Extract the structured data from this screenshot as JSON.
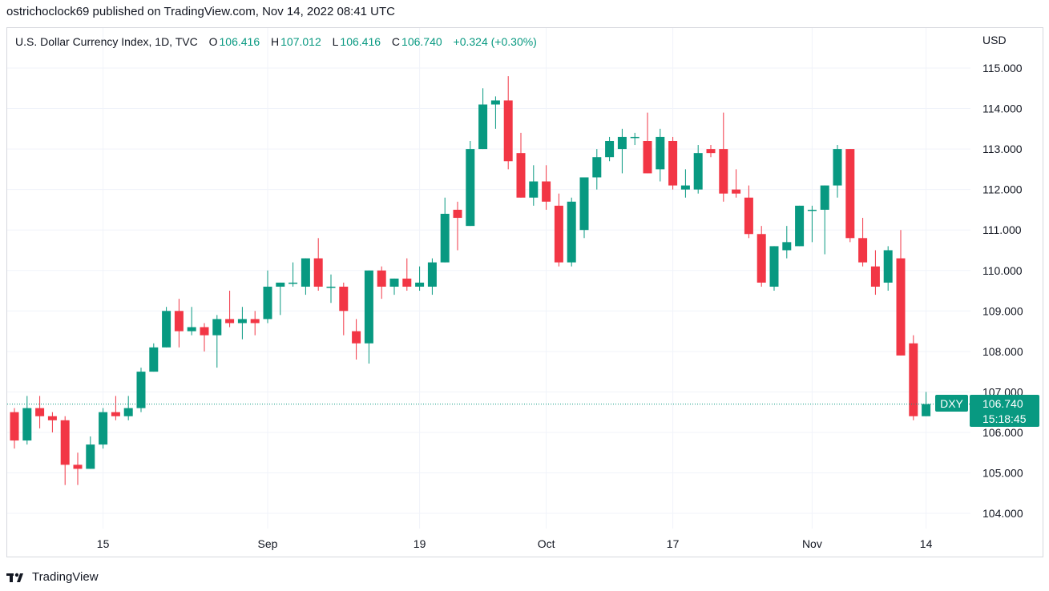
{
  "header": {
    "published_line": "ostrichoclock69 published on TradingView.com, Nov 14, 2022 08:41 UTC"
  },
  "legend": {
    "symbol": "U.S. Dollar Currency Index, 1D, TVC",
    "o_key": "O",
    "o_val": "106.416",
    "h_key": "H",
    "h_val": "107.012",
    "l_key": "L",
    "l_val": "106.416",
    "c_key": "C",
    "c_val": "106.740",
    "change": "+0.324 (+0.30%)"
  },
  "currency": "USD",
  "price_tag": {
    "ticker": "DXY",
    "price": "106.740",
    "countdown": "15:18:45"
  },
  "footer": {
    "brand": "TradingView",
    "logo": "tradingview-logo-icon"
  },
  "colors": {
    "up": "#089981",
    "down": "#f23645",
    "grid": "#f0f3fa",
    "axis_text": "#131722"
  },
  "chart_data": {
    "type": "candlestick",
    "ylim": [
      103.2,
      116.2
    ],
    "y_ticks": [
      "104.000",
      "105.000",
      "106.000",
      "107.000",
      "108.000",
      "109.000",
      "110.000",
      "111.000",
      "112.000",
      "113.000",
      "114.000",
      "115.000"
    ],
    "x_ticks": [
      {
        "label": "15",
        "index": 7
      },
      {
        "label": "Sep",
        "index": 20
      },
      {
        "label": "19",
        "index": 32
      },
      {
        "label": "Oct",
        "index": 42
      },
      {
        "label": "17",
        "index": 52
      },
      {
        "label": "Nov",
        "index": 63
      },
      {
        "label": "14",
        "index": 72
      }
    ],
    "candles": [
      {
        "o": 106.5,
        "h": 106.6,
        "l": 105.6,
        "c": 105.8
      },
      {
        "o": 105.8,
        "h": 106.9,
        "l": 105.7,
        "c": 106.6
      },
      {
        "o": 106.6,
        "h": 106.9,
        "l": 106.1,
        "c": 106.4
      },
      {
        "o": 106.4,
        "h": 106.5,
        "l": 106.0,
        "c": 106.3
      },
      {
        "o": 106.3,
        "h": 106.4,
        "l": 104.7,
        "c": 105.2
      },
      {
        "o": 105.2,
        "h": 105.5,
        "l": 104.7,
        "c": 105.1
      },
      {
        "o": 105.1,
        "h": 105.9,
        "l": 105.1,
        "c": 105.7
      },
      {
        "o": 105.7,
        "h": 106.6,
        "l": 105.6,
        "c": 106.5
      },
      {
        "o": 106.5,
        "h": 106.9,
        "l": 106.3,
        "c": 106.4
      },
      {
        "o": 106.4,
        "h": 106.9,
        "l": 106.3,
        "c": 106.6
      },
      {
        "o": 106.6,
        "h": 107.6,
        "l": 106.5,
        "c": 107.5
      },
      {
        "o": 107.5,
        "h": 108.2,
        "l": 107.5,
        "c": 108.1
      },
      {
        "o": 108.1,
        "h": 109.1,
        "l": 108.1,
        "c": 109.0
      },
      {
        "o": 109.0,
        "h": 109.3,
        "l": 108.1,
        "c": 108.5
      },
      {
        "o": 108.5,
        "h": 109.1,
        "l": 108.4,
        "c": 108.6
      },
      {
        "o": 108.6,
        "h": 108.7,
        "l": 108.0,
        "c": 108.4
      },
      {
        "o": 108.4,
        "h": 108.9,
        "l": 107.6,
        "c": 108.8
      },
      {
        "o": 108.8,
        "h": 109.5,
        "l": 108.6,
        "c": 108.7
      },
      {
        "o": 108.7,
        "h": 109.1,
        "l": 108.3,
        "c": 108.8
      },
      {
        "o": 108.8,
        "h": 109.0,
        "l": 108.4,
        "c": 108.7
      },
      {
        "o": 108.8,
        "h": 110.0,
        "l": 108.7,
        "c": 109.6
      },
      {
        "o": 109.6,
        "h": 109.7,
        "l": 108.9,
        "c": 109.7
      },
      {
        "o": 109.7,
        "h": 110.2,
        "l": 109.6,
        "c": 109.7
      },
      {
        "o": 109.6,
        "h": 110.3,
        "l": 109.4,
        "c": 110.3
      },
      {
        "o": 110.3,
        "h": 110.8,
        "l": 109.5,
        "c": 109.6
      },
      {
        "o": 109.6,
        "h": 109.9,
        "l": 109.2,
        "c": 109.6
      },
      {
        "o": 109.6,
        "h": 109.7,
        "l": 108.4,
        "c": 109.0
      },
      {
        "o": 108.5,
        "h": 108.8,
        "l": 107.8,
        "c": 108.2
      },
      {
        "o": 108.2,
        "h": 110.0,
        "l": 107.7,
        "c": 110.0
      },
      {
        "o": 110.0,
        "h": 110.1,
        "l": 109.3,
        "c": 109.6
      },
      {
        "o": 109.6,
        "h": 109.8,
        "l": 109.4,
        "c": 109.8
      },
      {
        "o": 109.8,
        "h": 110.3,
        "l": 109.5,
        "c": 109.6
      },
      {
        "o": 109.6,
        "h": 110.1,
        "l": 109.5,
        "c": 109.7
      },
      {
        "o": 109.6,
        "h": 110.3,
        "l": 109.4,
        "c": 110.2
      },
      {
        "o": 110.2,
        "h": 111.8,
        "l": 110.2,
        "c": 111.4
      },
      {
        "o": 111.5,
        "h": 111.7,
        "l": 110.5,
        "c": 111.3
      },
      {
        "o": 111.1,
        "h": 113.2,
        "l": 111.1,
        "c": 113.0
      },
      {
        "o": 113.0,
        "h": 114.5,
        "l": 113.0,
        "c": 114.1
      },
      {
        "o": 114.1,
        "h": 114.3,
        "l": 113.5,
        "c": 114.2
      },
      {
        "o": 114.2,
        "h": 114.8,
        "l": 112.5,
        "c": 112.7
      },
      {
        "o": 112.9,
        "h": 113.4,
        "l": 111.8,
        "c": 111.8
      },
      {
        "o": 111.8,
        "h": 112.6,
        "l": 111.6,
        "c": 112.2
      },
      {
        "o": 112.2,
        "h": 112.6,
        "l": 111.5,
        "c": 111.7
      },
      {
        "o": 111.6,
        "h": 111.9,
        "l": 110.1,
        "c": 110.2
      },
      {
        "o": 110.2,
        "h": 111.8,
        "l": 110.1,
        "c": 111.7
      },
      {
        "o": 111.0,
        "h": 112.3,
        "l": 110.8,
        "c": 112.3
      },
      {
        "o": 112.3,
        "h": 113.0,
        "l": 112.0,
        "c": 112.8
      },
      {
        "o": 112.8,
        "h": 113.3,
        "l": 112.7,
        "c": 113.2
      },
      {
        "o": 113.0,
        "h": 113.5,
        "l": 112.4,
        "c": 113.3
      },
      {
        "o": 113.3,
        "h": 113.4,
        "l": 113.1,
        "c": 113.3
      },
      {
        "o": 113.2,
        "h": 113.9,
        "l": 112.4,
        "c": 112.4
      },
      {
        "o": 112.5,
        "h": 113.5,
        "l": 112.2,
        "c": 113.3
      },
      {
        "o": 113.2,
        "h": 113.3,
        "l": 112.0,
        "c": 112.1
      },
      {
        "o": 112.0,
        "h": 112.5,
        "l": 111.8,
        "c": 112.1
      },
      {
        "o": 112.0,
        "h": 113.1,
        "l": 111.9,
        "c": 112.9
      },
      {
        "o": 113.0,
        "h": 113.1,
        "l": 112.8,
        "c": 112.9
      },
      {
        "o": 113.0,
        "h": 113.9,
        "l": 111.7,
        "c": 111.9
      },
      {
        "o": 112.0,
        "h": 112.5,
        "l": 111.8,
        "c": 111.9
      },
      {
        "o": 111.8,
        "h": 112.1,
        "l": 110.8,
        "c": 110.9
      },
      {
        "o": 110.9,
        "h": 111.1,
        "l": 109.6,
        "c": 109.7
      },
      {
        "o": 109.6,
        "h": 110.6,
        "l": 109.5,
        "c": 110.6
      },
      {
        "o": 110.5,
        "h": 111.1,
        "l": 110.3,
        "c": 110.7
      },
      {
        "o": 110.6,
        "h": 111.6,
        "l": 110.6,
        "c": 111.6
      },
      {
        "o": 111.5,
        "h": 111.6,
        "l": 110.7,
        "c": 111.5
      },
      {
        "o": 111.5,
        "h": 112.1,
        "l": 110.4,
        "c": 112.1
      },
      {
        "o": 112.1,
        "h": 113.1,
        "l": 111.8,
        "c": 113.0
      },
      {
        "o": 113.0,
        "h": 113.0,
        "l": 110.7,
        "c": 110.8
      },
      {
        "o": 110.8,
        "h": 111.3,
        "l": 110.1,
        "c": 110.2
      },
      {
        "o": 110.1,
        "h": 110.5,
        "l": 109.4,
        "c": 109.6
      },
      {
        "o": 109.7,
        "h": 110.6,
        "l": 109.5,
        "c": 110.5
      },
      {
        "o": 110.3,
        "h": 111.0,
        "l": 107.9,
        "c": 107.9
      },
      {
        "o": 108.2,
        "h": 108.4,
        "l": 106.3,
        "c": 106.4
      },
      {
        "o": 106.4,
        "h": 107.0,
        "l": 106.4,
        "c": 106.7
      }
    ]
  }
}
